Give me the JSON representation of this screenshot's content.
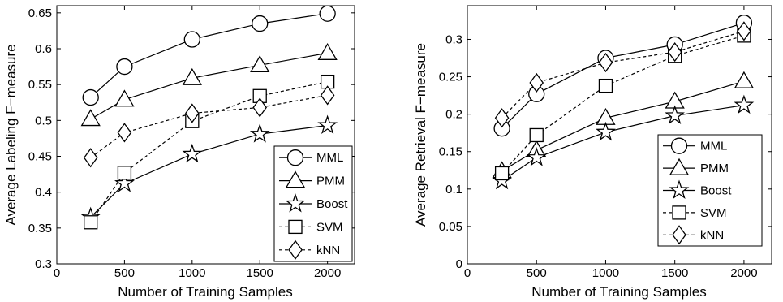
{
  "chart_data": [
    {
      "type": "line",
      "title": "",
      "xlabel": "Number of Training Samples",
      "ylabel": "Average Labeling F−measure",
      "xlim": [
        0,
        2200
      ],
      "ylim": [
        0.3,
        0.66
      ],
      "xticks": [
        0,
        500,
        1000,
        1500,
        2000
      ],
      "xtick_labels": [
        "0",
        "500",
        "1000",
        "1500",
        "2000"
      ],
      "yticks": [
        0.3,
        0.35,
        0.4,
        0.45,
        0.5,
        0.55,
        0.6,
        0.65
      ],
      "ytick_labels": [
        "0.3",
        "0.35",
        "0.4",
        "0.45",
        "0.5",
        "0.55",
        "0.6",
        "0.65"
      ],
      "grid": false,
      "legend_position": "bottom-right",
      "x": [
        250,
        500,
        1000,
        1500,
        2000
      ],
      "series": [
        {
          "name": "MML",
          "marker": "circle",
          "line": "solid",
          "values": [
            0.532,
            0.575,
            0.613,
            0.635,
            0.649
          ]
        },
        {
          "name": "PMM",
          "marker": "triangle",
          "line": "solid",
          "values": [
            0.502,
            0.529,
            0.559,
            0.577,
            0.594
          ]
        },
        {
          "name": "Boost",
          "marker": "star",
          "line": "solid",
          "values": [
            0.365,
            0.412,
            0.453,
            0.481,
            0.493
          ]
        },
        {
          "name": "SVM",
          "marker": "square",
          "line": "dashed",
          "values": [
            0.358,
            0.427,
            0.499,
            0.534,
            0.554
          ]
        },
        {
          "name": "kNN",
          "marker": "diamond",
          "line": "dashed",
          "values": [
            0.448,
            0.483,
            0.51,
            0.518,
            0.535
          ]
        }
      ]
    },
    {
      "type": "line",
      "title": "",
      "xlabel": "Number of Training Samples",
      "ylabel": "Average Retrieval F−measure",
      "xlim": [
        0,
        2200
      ],
      "ylim": [
        0,
        0.345
      ],
      "xticks": [
        0,
        500,
        1000,
        1500,
        2000
      ],
      "xtick_labels": [
        "0",
        "500",
        "1000",
        "1500",
        "2000"
      ],
      "yticks": [
        0,
        0.05,
        0.1,
        0.15,
        0.2,
        0.25,
        0.3
      ],
      "ytick_labels": [
        "0",
        "0.05",
        "0.1",
        "0.15",
        "0.2",
        "0.25",
        "0.3"
      ],
      "grid": false,
      "legend_position": "bottom-right",
      "x": [
        250,
        500,
        1000,
        1500,
        2000
      ],
      "series": [
        {
          "name": "MML",
          "marker": "circle",
          "line": "solid",
          "values": [
            0.181,
            0.227,
            0.275,
            0.293,
            0.322
          ]
        },
        {
          "name": "PMM",
          "marker": "triangle",
          "line": "solid",
          "values": [
            0.124,
            0.152,
            0.195,
            0.217,
            0.244
          ]
        },
        {
          "name": "Boost",
          "marker": "star",
          "line": "solid",
          "values": [
            0.111,
            0.142,
            0.176,
            0.198,
            0.212
          ]
        },
        {
          "name": "SVM",
          "marker": "square",
          "line": "dashed",
          "values": [
            0.121,
            0.172,
            0.238,
            0.278,
            0.305
          ]
        },
        {
          "name": "kNN",
          "marker": "diamond",
          "line": "dashed",
          "values": [
            0.195,
            0.242,
            0.269,
            0.283,
            0.311
          ]
        }
      ]
    }
  ]
}
